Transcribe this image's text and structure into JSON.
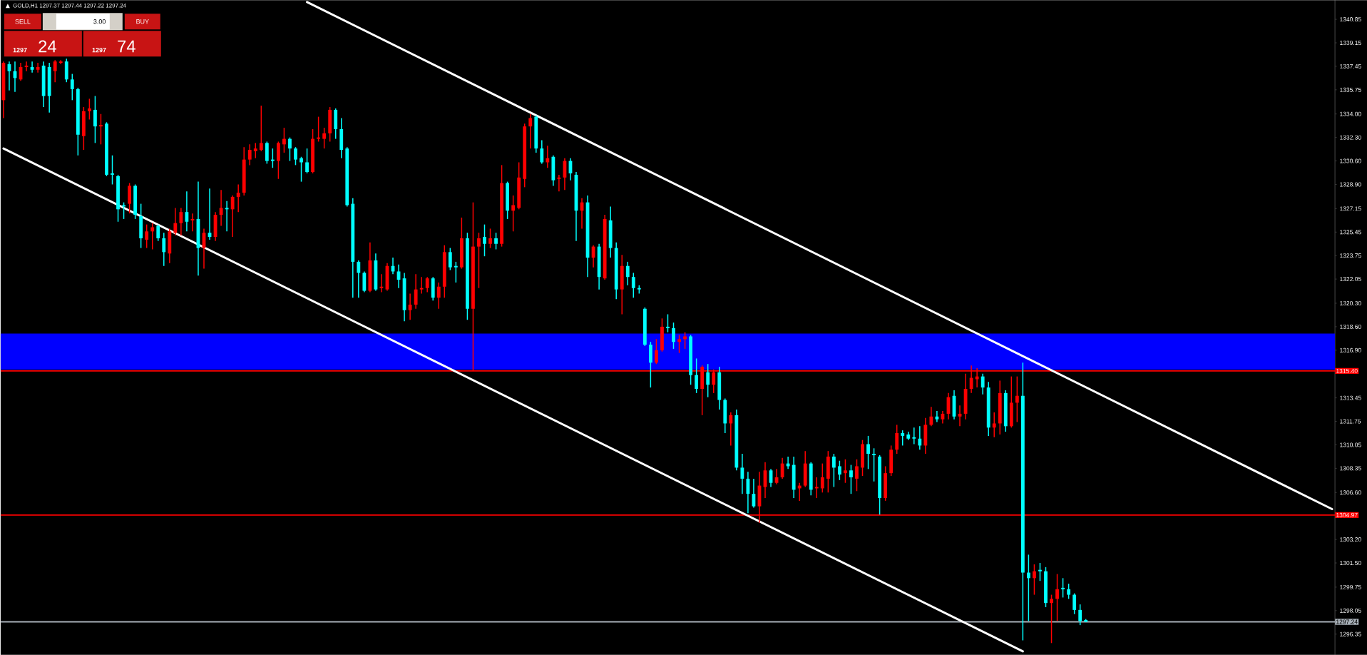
{
  "chart_data": {
    "type": "candlestick",
    "title": "GOLD,H1 1297.37 1297.44 1297.22 1297.24",
    "annotations": [
      "SELL",
      "3.00",
      "BUY",
      "1297",
      "24",
      "1297",
      "74"
    ],
    "categories": [
      null,
      null,
      null,
      null,
      null,
      null,
      null,
      null,
      null,
      null,
      null,
      null,
      null,
      null,
      null,
      null,
      null,
      null,
      null,
      null,
      null,
      null,
      null,
      null,
      null,
      null,
      null,
      null,
      null,
      null,
      null,
      null,
      null,
      null,
      null,
      null,
      null,
      null,
      null,
      null,
      null,
      null,
      null,
      null,
      null,
      null,
      null,
      null,
      null,
      null,
      null,
      null,
      null,
      null,
      null,
      null,
      null,
      null,
      null,
      null,
      null,
      null,
      null,
      null,
      null,
      null,
      null,
      null,
      null,
      null,
      null,
      null,
      null,
      null,
      null,
      null,
      null,
      null,
      null,
      null,
      null,
      null,
      null,
      null,
      null,
      null,
      null,
      null,
      null,
      null,
      null,
      null,
      null,
      null,
      null,
      null,
      null,
      null,
      null,
      null,
      null,
      null,
      null,
      null,
      null,
      null,
      null,
      null,
      null,
      null,
      null,
      null,
      null,
      null,
      null,
      null,
      null,
      null,
      null,
      null,
      null,
      null,
      null,
      null,
      null,
      null,
      null,
      null,
      null,
      null,
      null,
      null,
      null,
      null,
      null,
      null,
      null,
      null,
      null,
      null,
      null,
      null,
      null,
      null,
      null,
      null,
      null,
      null,
      null,
      null,
      null,
      null,
      null,
      null,
      null,
      null,
      null,
      null,
      null,
      null,
      null,
      null,
      null,
      null,
      null,
      null,
      null,
      null,
      null,
      null,
      null,
      null,
      null,
      null,
      null,
      null,
      null,
      null,
      null,
      null,
      null,
      null,
      null,
      null,
      null,
      null,
      null,
      null,
      null,
      null,
      null,
      null,
      null,
      null,
      null,
      null,
      null,
      null,
      null,
      null,
      null,
      null,
      null,
      null,
      null,
      null,
      null,
      null,
      null,
      null,
      null,
      null,
      null,
      null,
      null,
      null,
      null,
      null,
      null,
      null,
      null,
      null,
      null,
      null,
      null,
      null,
      null,
      null,
      null,
      null,
      null,
      null,
      null
    ],
    "ohlc": [
      [
        1335.0,
        1337.8,
        1333.7,
        1337.7
      ],
      [
        1337.6,
        1337.8,
        1335.7,
        1337.1
      ],
      [
        1337.1,
        1337.8,
        1335.6,
        1336.6
      ],
      [
        1336.5,
        1337.7,
        1336.4,
        1337.4
      ],
      [
        1337.4,
        1337.8,
        1337.1,
        1337.5
      ],
      [
        1337.4,
        1337.8,
        1337.0,
        1337.2
      ],
      [
        1337.2,
        1337.7,
        1337.0,
        1337.4
      ],
      [
        1337.5,
        1337.8,
        1334.5,
        1335.3
      ],
      [
        1337.4,
        1337.7,
        1334.1,
        1335.3
      ],
      [
        1337.1,
        1337.9,
        1336.3,
        1337.8
      ],
      [
        1337.7,
        1337.9,
        1337.6,
        1337.8
      ],
      [
        1337.8,
        1338.0,
        1336.3,
        1336.5
      ],
      [
        1336.5,
        1336.9,
        1335.0,
        1335.8
      ],
      [
        1335.8,
        1335.9,
        1331.0,
        1332.5
      ],
      [
        1332.4,
        1334.5,
        1331.4,
        1334.2
      ],
      [
        1334.2,
        1335.1,
        1333.6,
        1334.4
      ],
      [
        1334.3,
        1335.3,
        1331.9,
        1333.1
      ],
      [
        1333.1,
        1334.0,
        1331.8,
        1333.2
      ],
      [
        1333.3,
        1333.4,
        1329.5,
        1329.6
      ],
      [
        1329.7,
        1331.0,
        1328.9,
        1329.6
      ],
      [
        1329.5,
        1329.6,
        1326.2,
        1327.1
      ],
      [
        1327.4,
        1327.6,
        1326.4,
        1327.3
      ],
      [
        1327.5,
        1329.0,
        1326.8,
        1328.8
      ],
      [
        1328.8,
        1328.9,
        1326.4,
        1326.7
      ],
      [
        1326.6,
        1327.5,
        1324.3,
        1325.0
      ],
      [
        1324.9,
        1326.0,
        1324.3,
        1325.5
      ],
      [
        1325.5,
        1326.1,
        1324.2,
        1325.8
      ],
      [
        1325.9,
        1326.0,
        1324.8,
        1325.0
      ],
      [
        1325.0,
        1325.4,
        1323.0,
        1324.0
      ],
      [
        1323.9,
        1325.7,
        1323.2,
        1325.5
      ],
      [
        1325.4,
        1327.2,
        1325.2,
        1326.1
      ],
      [
        1326.1,
        1327.2,
        1325.2,
        1326.9
      ],
      [
        1326.9,
        1328.4,
        1325.5,
        1326.2
      ],
      [
        1326.3,
        1326.8,
        1325.5,
        1326.4
      ],
      [
        1326.4,
        1329.1,
        1322.3,
        1324.3
      ],
      [
        1324.3,
        1325.7,
        1322.8,
        1325.4
      ],
      [
        1325.4,
        1328.6,
        1324.9,
        1325.1
      ],
      [
        1325.1,
        1326.9,
        1324.8,
        1326.7
      ],
      [
        1326.7,
        1328.5,
        1325.9,
        1327.2
      ],
      [
        1327.2,
        1327.7,
        1325.5,
        1327.1
      ],
      [
        1327.1,
        1328.1,
        1325.1,
        1328.0
      ],
      [
        1328.0,
        1328.9,
        1326.9,
        1328.3
      ],
      [
        1328.3,
        1331.6,
        1328.1,
        1330.7
      ],
      [
        1330.7,
        1331.8,
        1330.3,
        1331.4
      ],
      [
        1331.3,
        1331.9,
        1330.8,
        1331.5
      ],
      [
        1331.4,
        1334.6,
        1331.3,
        1331.9
      ],
      [
        1331.9,
        1332.0,
        1330.4,
        1330.6
      ],
      [
        1330.7,
        1331.5,
        1330.1,
        1330.6
      ],
      [
        1330.6,
        1332.0,
        1329.3,
        1331.9
      ],
      [
        1331.8,
        1333.0,
        1331.2,
        1332.2
      ],
      [
        1332.2,
        1332.3,
        1330.6,
        1331.5
      ],
      [
        1331.5,
        1331.6,
        1330.3,
        1330.7
      ],
      [
        1330.8,
        1330.9,
        1329.1,
        1330.5
      ],
      [
        1330.5,
        1331.5,
        1329.7,
        1329.8
      ],
      [
        1329.8,
        1332.9,
        1329.7,
        1332.2
      ],
      [
        1332.2,
        1333.8,
        1332.0,
        1332.3
      ],
      [
        1332.2,
        1333.0,
        1331.5,
        1332.6
      ],
      [
        1332.6,
        1334.5,
        1332.0,
        1334.3
      ],
      [
        1334.3,
        1334.4,
        1332.2,
        1332.9
      ],
      [
        1332.9,
        1333.7,
        1330.8,
        1331.4
      ],
      [
        1331.5,
        1331.6,
        1327.3,
        1327.4
      ],
      [
        1327.5,
        1327.9,
        1320.7,
        1323.3
      ],
      [
        1323.3,
        1323.4,
        1320.7,
        1322.5
      ],
      [
        1322.5,
        1322.6,
        1321.1,
        1321.2
      ],
      [
        1321.2,
        1324.7,
        1321.1,
        1323.4
      ],
      [
        1323.4,
        1323.9,
        1321.2,
        1321.3
      ],
      [
        1321.4,
        1322.4,
        1321.1,
        1321.5
      ],
      [
        1321.3,
        1323.2,
        1321.2,
        1323.0
      ],
      [
        1323.0,
        1323.6,
        1322.4,
        1322.6
      ],
      [
        1322.6,
        1323.1,
        1321.4,
        1322.0
      ],
      [
        1322.1,
        1322.5,
        1319.0,
        1319.8
      ],
      [
        1319.8,
        1321.0,
        1319.1,
        1320.2
      ],
      [
        1320.2,
        1322.4,
        1319.9,
        1321.3
      ],
      [
        1321.3,
        1322.2,
        1321.0,
        1321.4
      ],
      [
        1321.4,
        1322.2,
        1321.1,
        1322.1
      ],
      [
        1322.1,
        1322.2,
        1320.5,
        1320.7
      ],
      [
        1320.7,
        1321.8,
        1319.9,
        1321.5
      ],
      [
        1321.5,
        1324.5,
        1320.7,
        1324.0
      ],
      [
        1324.0,
        1324.3,
        1322.7,
        1322.9
      ],
      [
        1323.0,
        1323.3,
        1321.8,
        1322.9
      ],
      [
        1322.9,
        1326.5,
        1322.8,
        1325.0
      ],
      [
        1325.0,
        1325.4,
        1319.1,
        1319.9
      ],
      [
        1319.9,
        1327.6,
        1315.4,
        1324.4
      ],
      [
        1324.4,
        1325.4,
        1321.4,
        1325.0
      ],
      [
        1325.1,
        1326.0,
        1323.7,
        1324.6
      ],
      [
        1324.6,
        1325.7,
        1324.3,
        1325.0
      ],
      [
        1325.0,
        1325.4,
        1324.2,
        1324.6
      ],
      [
        1324.6,
        1330.3,
        1324.4,
        1329.0
      ],
      [
        1329.0,
        1329.1,
        1326.4,
        1327.0
      ],
      [
        1327.0,
        1328.1,
        1325.5,
        1327.4
      ],
      [
        1327.2,
        1330.5,
        1327.1,
        1329.4
      ],
      [
        1329.3,
        1333.3,
        1328.7,
        1333.1
      ],
      [
        1333.1,
        1334.0,
        1331.5,
        1333.7
      ],
      [
        1333.8,
        1333.9,
        1331.2,
        1331.5
      ],
      [
        1331.5,
        1332.1,
        1330.4,
        1330.5
      ],
      [
        1330.5,
        1331.7,
        1330.1,
        1330.8
      ],
      [
        1330.9,
        1331.0,
        1328.8,
        1329.2
      ],
      [
        1329.3,
        1329.6,
        1328.4,
        1329.4
      ],
      [
        1329.4,
        1330.8,
        1328.5,
        1330.6
      ],
      [
        1330.6,
        1330.8,
        1329.2,
        1329.7
      ],
      [
        1329.6,
        1329.8,
        1324.8,
        1327.0
      ],
      [
        1327.0,
        1327.9,
        1325.7,
        1327.6
      ],
      [
        1327.6,
        1328.1,
        1322.2,
        1323.6
      ],
      [
        1323.6,
        1324.5,
        1322.9,
        1324.4
      ],
      [
        1324.4,
        1324.6,
        1321.3,
        1322.2
      ],
      [
        1322.1,
        1326.7,
        1322.0,
        1326.4
      ],
      [
        1326.3,
        1327.3,
        1323.6,
        1324.3
      ],
      [
        1324.3,
        1324.7,
        1320.6,
        1321.3
      ],
      [
        1321.3,
        1323.8,
        1319.5,
        1323.0
      ],
      [
        1323.0,
        1323.3,
        1321.6,
        1322.2
      ],
      [
        1322.2,
        1322.5,
        1320.7,
        1321.4
      ],
      [
        1321.4,
        1321.6,
        1321.0,
        1321.3
      ],
      [
        1319.9,
        1320.0,
        1317.2,
        1317.3
      ],
      [
        1317.3,
        1317.5,
        1314.2,
        1316.0
      ],
      [
        1316.0,
        1317.7,
        1315.9,
        1316.9
      ],
      [
        1316.9,
        1319.2,
        1316.8,
        1318.6
      ],
      [
        1318.6,
        1319.5,
        1318.2,
        1318.5
      ],
      [
        1318.5,
        1318.9,
        1317.0,
        1317.5
      ],
      [
        1317.5,
        1318.0,
        1316.7,
        1317.7
      ],
      [
        1317.7,
        1318.2,
        1317.0,
        1317.9
      ],
      [
        1317.9,
        1318.0,
        1314.4,
        1315.1
      ],
      [
        1315.1,
        1316.3,
        1313.8,
        1314.1
      ],
      [
        1314.1,
        1315.8,
        1312.2,
        1315.7
      ],
      [
        1315.3,
        1315.9,
        1313.5,
        1314.4
      ],
      [
        1314.4,
        1315.5,
        1313.8,
        1315.3
      ],
      [
        1315.3,
        1315.7,
        1312.6,
        1313.3
      ],
      [
        1313.3,
        1313.4,
        1310.9,
        1311.6
      ],
      [
        1311.6,
        1312.4,
        1310.0,
        1312.2
      ],
      [
        1312.2,
        1312.6,
        1308.2,
        1308.4
      ],
      [
        1308.4,
        1309.4,
        1306.5,
        1307.6
      ],
      [
        1307.6,
        1308.1,
        1305.1,
        1306.5
      ],
      [
        1306.5,
        1307.6,
        1305.5,
        1305.6
      ],
      [
        1305.6,
        1308.1,
        1304.4,
        1307.1
      ],
      [
        1307.0,
        1308.8,
        1306.2,
        1308.2
      ],
      [
        1308.2,
        1308.3,
        1307.0,
        1307.3
      ],
      [
        1307.3,
        1308.3,
        1307.2,
        1307.7
      ],
      [
        1307.7,
        1309.1,
        1307.6,
        1308.7
      ],
      [
        1308.7,
        1309.2,
        1308.3,
        1308.5
      ],
      [
        1308.6,
        1309.2,
        1306.2,
        1306.8
      ],
      [
        1306.9,
        1307.3,
        1306.0,
        1307.1
      ],
      [
        1307.1,
        1309.6,
        1307.0,
        1308.7
      ],
      [
        1308.7,
        1308.8,
        1306.4,
        1306.8
      ],
      [
        1306.9,
        1307.7,
        1306.2,
        1307.0
      ],
      [
        1306.9,
        1308.7,
        1306.6,
        1307.7
      ],
      [
        1307.6,
        1309.6,
        1306.6,
        1309.2
      ],
      [
        1309.2,
        1309.4,
        1307.0,
        1308.4
      ],
      [
        1308.5,
        1308.9,
        1307.5,
        1307.9
      ],
      [
        1308.0,
        1309.0,
        1307.3,
        1308.2
      ],
      [
        1308.2,
        1308.6,
        1306.5,
        1307.7
      ],
      [
        1307.6,
        1309.0,
        1306.7,
        1308.5
      ],
      [
        1308.4,
        1310.4,
        1307.8,
        1310.1
      ],
      [
        1310.1,
        1310.7,
        1308.3,
        1309.4
      ],
      [
        1309.4,
        1309.8,
        1307.4,
        1309.3
      ],
      [
        1309.2,
        1309.3,
        1305.0,
        1306.2
      ],
      [
        1306.2,
        1308.5,
        1306.0,
        1308.0
      ],
      [
        1308.0,
        1310.0,
        1307.8,
        1309.7
      ],
      [
        1309.7,
        1311.5,
        1309.4,
        1310.9
      ],
      [
        1310.9,
        1311.1,
        1310.0,
        1310.7
      ],
      [
        1310.8,
        1311.0,
        1310.4,
        1310.5
      ],
      [
        1310.6,
        1311.3,
        1310.1,
        1310.5
      ],
      [
        1310.5,
        1311.4,
        1309.7,
        1310.0
      ],
      [
        1310.0,
        1312.0,
        1309.4,
        1311.5
      ],
      [
        1311.5,
        1312.8,
        1311.4,
        1312.1
      ],
      [
        1312.1,
        1312.5,
        1311.7,
        1311.9
      ],
      [
        1311.9,
        1312.5,
        1311.6,
        1312.3
      ],
      [
        1312.3,
        1313.8,
        1311.9,
        1313.5
      ],
      [
        1313.6,
        1314.0,
        1311.9,
        1312.1
      ],
      [
        1312.1,
        1312.9,
        1311.4,
        1312.3
      ],
      [
        1312.3,
        1315.2,
        1311.9,
        1314.1
      ],
      [
        1314.1,
        1315.8,
        1313.8,
        1314.9
      ],
      [
        1314.8,
        1315.6,
        1314.2,
        1315.0
      ],
      [
        1315.0,
        1315.2,
        1313.7,
        1314.2
      ],
      [
        1314.2,
        1314.6,
        1310.7,
        1311.3
      ],
      [
        1311.3,
        1312.4,
        1310.6,
        1311.6
      ],
      [
        1311.6,
        1314.7,
        1310.8,
        1313.8
      ],
      [
        1313.8,
        1314.0,
        1311.0,
        1311.4
      ],
      [
        1311.4,
        1315.0,
        1311.3,
        1313.1
      ],
      [
        1313.1,
        1315.0,
        1311.7,
        1313.6
      ],
      [
        1313.6,
        1316.0,
        1295.9,
        1300.8
      ],
      [
        1300.8,
        1302.1,
        1297.3,
        1300.4
      ],
      [
        1300.4,
        1301.4,
        1299.2,
        1300.9
      ],
      [
        1301.0,
        1301.5,
        1300.2,
        1300.9
      ],
      [
        1300.9,
        1301.2,
        1298.3,
        1298.6
      ],
      [
        1298.6,
        1299.2,
        1295.7,
        1298.9
      ],
      [
        1298.9,
        1300.7,
        1297.3,
        1299.6
      ],
      [
        1299.7,
        1300.4,
        1299.0,
        1299.6
      ],
      [
        1299.6,
        1300.0,
        1298.9,
        1299.2
      ],
      [
        1299.2,
        1299.3,
        1297.8,
        1298.1
      ],
      [
        1298.1,
        1298.5,
        1297.0,
        1297.3
      ],
      [
        1297.37,
        1297.44,
        1297.22,
        1297.24
      ],
      null,
      null,
      null,
      null,
      null,
      null,
      null,
      null,
      null,
      null,
      null,
      null,
      null,
      null,
      null,
      null,
      null,
      null,
      null,
      null,
      null,
      null,
      null,
      null,
      null,
      null,
      null,
      null,
      null,
      null,
      null,
      null,
      null,
      null,
      null,
      null,
      null,
      null,
      null,
      null,
      null,
      null,
      null
    ],
    "colors": [
      "#ff0000",
      "#00ffff",
      "#00ffff",
      "#ff0000",
      "#ff0000",
      "#00ffff",
      "#ff0000",
      "#00ffff",
      "#00ffff",
      "#ff0000",
      "#ff0000",
      "#00ffff",
      "#00ffff",
      "#00ffff",
      "#ff0000",
      "#ff0000",
      "#00ffff",
      "#ff0000",
      "#00ffff",
      "#00ffff",
      "#00ffff",
      "#00ffff",
      "#ff0000",
      "#00ffff",
      "#00ffff",
      "#ff0000",
      "#ff0000",
      "#00ffff",
      "#00ffff",
      "#ff0000",
      "#ff0000",
      "#ff0000",
      "#00ffff",
      "#ff0000",
      "#00ffff",
      "#ff0000",
      "#00ffff",
      "#ff0000",
      "#ff0000",
      "#00ffff",
      "#ff0000",
      "#ff0000",
      "#ff0000",
      "#ff0000",
      "#ff0000",
      "#ff0000",
      "#00ffff",
      "#00ffff",
      "#ff0000",
      "#ff0000",
      "#00ffff",
      "#00ffff",
      "#00ffff",
      "#00ffff",
      "#ff0000",
      "#ff0000",
      "#ff0000",
      "#ff0000",
      "#00ffff",
      "#00ffff",
      "#00ffff",
      "#00ffff",
      "#00ffff",
      "#00ffff",
      "#ff0000",
      "#00ffff",
      "#ff0000",
      "#ff0000",
      "#00ffff",
      "#00ffff",
      "#00ffff",
      "#ff0000",
      "#ff0000",
      "#ff0000",
      "#ff0000",
      "#00ffff",
      "#ff0000",
      "#ff0000",
      "#00ffff",
      "#00ffff",
      "#ff0000",
      "#00ffff",
      "#ff0000",
      "#ff0000",
      "#00ffff",
      "#ff0000",
      "#00ffff",
      "#ff0000",
      "#00ffff",
      "#ff0000",
      "#ff0000",
      "#ff0000",
      "#ff0000",
      "#00ffff",
      "#00ffff",
      "#ff0000",
      "#00ffff",
      "#ff0000",
      "#ff0000",
      "#00ffff",
      "#00ffff",
      "#ff0000",
      "#00ffff",
      "#ff0000",
      "#00ffff",
      "#ff0000",
      "#00ffff",
      "#00ffff",
      "#ff0000",
      "#00ffff",
      "#00ffff",
      "#00ffff",
      "#00ffff",
      "#00ffff",
      "#ff0000",
      "#ff0000",
      "#00ffff",
      "#00ffff",
      "#ff0000",
      "#ff0000",
      "#00ffff",
      "#00ffff",
      "#ff0000",
      "#00ffff",
      "#ff0000",
      "#00ffff",
      "#00ffff",
      "#ff0000",
      "#00ffff",
      "#00ffff",
      "#00ffff",
      "#00ffff",
      "#ff0000",
      "#ff0000",
      "#00ffff",
      "#ff0000",
      "#ff0000",
      "#00ffff",
      "#00ffff",
      "#ff0000",
      "#ff0000",
      "#00ffff",
      "#ff0000",
      "#ff0000",
      "#ff0000",
      "#00ffff",
      "#00ffff",
      "#ff0000",
      "#00ffff",
      "#ff0000",
      "#ff0000",
      "#00ffff",
      "#00ffff",
      "#00ffff",
      "#ff0000",
      "#ff0000",
      "#ff0000",
      "#00ffff",
      "#00ffff",
      "#00ffff",
      "#00ffff",
      "#ff0000",
      "#ff0000",
      "#00ffff",
      "#ff0000",
      "#ff0000",
      "#00ffff",
      "#ff0000",
      "#ff0000",
      "#ff0000",
      "#ff0000",
      "#00ffff",
      "#00ffff",
      "#ff0000",
      "#ff0000",
      "#00ffff",
      "#ff0000",
      "#ff0000",
      "#00ffff",
      "#00ffff",
      "#ff0000",
      "#00ffff",
      "#00ffff",
      "#ff0000",
      "#ff0000",
      "#00ffff",
      "#00ffff",
      "#00ffff",
      "#00ffff",
      "#00ffff",
      null,
      null,
      null,
      null,
      null,
      null,
      null,
      null,
      null,
      null,
      null,
      null,
      null,
      null,
      null,
      null,
      null,
      null,
      null,
      null,
      null,
      null,
      null,
      null,
      null,
      null,
      null,
      null,
      null,
      null,
      null,
      null,
      null,
      null,
      null,
      null,
      null,
      null,
      null,
      null,
      null,
      null,
      null
    ],
    "series": [
      {
        "type": "line",
        "color": "#ffffff",
        "values": [
          null,
          null,
          null,
          null,
          null,
          null,
          null,
          null,
          null,
          null,
          null,
          null,
          null,
          null,
          null,
          null,
          null,
          null,
          null,
          null,
          null,
          null,
          null,
          null,
          null,
          null,
          null,
          null,
          null,
          null,
          null,
          null,
          null,
          null,
          null,
          null,
          null,
          null,
          null,
          null,
          null,
          null,
          null,
          null,
          null,
          null,
          null,
          null,
          null,
          null,
          null,
          null,
          null,
          1342.1,
          null,
          null,
          null,
          null,
          null,
          null,
          null,
          null,
          null,
          null,
          null,
          null,
          null,
          null,
          null,
          null,
          null,
          null,
          null,
          null,
          null,
          null,
          null,
          null,
          null,
          null,
          null,
          null,
          null,
          null,
          null,
          null,
          null,
          null,
          null,
          null,
          null,
          null,
          null,
          null,
          null,
          null,
          null,
          null,
          null,
          null,
          null,
          null,
          null,
          null,
          null,
          null,
          null,
          null,
          null,
          null,
          null,
          null,
          null,
          null,
          null,
          null,
          null,
          null,
          null,
          null,
          null,
          null,
          null,
          null,
          null,
          null,
          null,
          null,
          null,
          null,
          null,
          null,
          null,
          null,
          null,
          null,
          null,
          null,
          null,
          null,
          null,
          null,
          null,
          null,
          null,
          null,
          null,
          null,
          null,
          null,
          null,
          null,
          null,
          null,
          null,
          null,
          null,
          null,
          null,
          null,
          null,
          null,
          null,
          null,
          null,
          null,
          null,
          null,
          null,
          null,
          null,
          null,
          null,
          null,
          null,
          null,
          null,
          null,
          null,
          null,
          null,
          null,
          null,
          null,
          null,
          null,
          null,
          null,
          null,
          null,
          null,
          null,
          null,
          null,
          null,
          null,
          null,
          null,
          null,
          null,
          null,
          null,
          null,
          null,
          null,
          null,
          null,
          null,
          null,
          null,
          null,
          null,
          null,
          null,
          null,
          null,
          null,
          null,
          null,
          null,
          null,
          null,
          null,
          null,
          null,
          null,
          null,
          null,
          null,
          null,
          null,
          null,
          1305.4
        ]
      },
      {
        "type": "line",
        "color": "#ffffff",
        "values": [
          1331.5,
          null,
          null,
          null,
          null,
          null,
          null,
          null,
          null,
          null,
          null,
          null,
          null,
          null,
          null,
          null,
          null,
          null,
          null,
          null,
          null,
          null,
          null,
          null,
          null,
          null,
          null,
          null,
          null,
          null,
          null,
          null,
          null,
          null,
          null,
          null,
          null,
          null,
          null,
          null,
          null,
          null,
          null,
          null,
          null,
          null,
          null,
          null,
          null,
          null,
          null,
          null,
          null,
          null,
          null,
          null,
          null,
          null,
          null,
          null,
          null,
          null,
          null,
          null,
          null,
          null,
          null,
          null,
          null,
          null,
          null,
          null,
          null,
          null,
          null,
          null,
          null,
          null,
          null,
          null,
          null,
          null,
          null,
          null,
          null,
          null,
          null,
          null,
          null,
          null,
          null,
          null,
          null,
          null,
          null,
          null,
          null,
          null,
          null,
          null,
          null,
          null,
          null,
          null,
          null,
          null,
          null,
          null,
          null,
          null,
          null,
          null,
          null,
          null,
          null,
          null,
          null,
          null,
          null,
          null,
          null,
          null,
          null,
          null,
          null,
          null,
          null,
          null,
          null,
          null,
          null,
          null,
          null,
          null,
          null,
          null,
          null,
          null,
          null,
          null,
          null,
          null,
          null,
          null,
          null,
          null,
          null,
          null,
          null,
          null,
          null,
          null,
          null,
          null,
          null,
          null,
          null,
          null,
          null,
          null,
          null,
          null,
          null,
          null,
          null,
          null,
          null,
          null,
          null,
          null,
          null,
          null,
          null,
          null,
          null,
          null,
          null,
          null,
          1295.1,
          null,
          null,
          null,
          null,
          null,
          null,
          null,
          null,
          null,
          null,
          null,
          null,
          null,
          null,
          null,
          null,
          null,
          null,
          null,
          null,
          null,
          null,
          null,
          null,
          null,
          null,
          null,
          null,
          null,
          null,
          null,
          null,
          null,
          null,
          null,
          null,
          null,
          null,
          null,
          null,
          null,
          null,
          null,
          null,
          null,
          null,
          null,
          null,
          null,
          null,
          null,
          null,
          null,
          null
        ]
      }
    ],
    "ylim": [
      1294.85,
      1342.24
    ],
    "yticks": [
      {
        "value": 1340.85,
        "label": "1340.85"
      },
      {
        "value": 1339.15,
        "label": "1339.15"
      },
      {
        "value": 1337.45,
        "label": "1337.45"
      },
      {
        "value": 1335.75,
        "label": "1335.75"
      },
      {
        "value": 1334.0,
        "label": "1334.00"
      },
      {
        "value": 1332.3,
        "label": "1332.30"
      },
      {
        "value": 1330.6,
        "label": "1330.60"
      },
      {
        "value": 1328.9,
        "label": "1328.90"
      },
      {
        "value": 1327.15,
        "label": "1327.15"
      },
      {
        "value": 1325.45,
        "label": "1325.45"
      },
      {
        "value": 1323.75,
        "label": "1323.75"
      },
      {
        "value": 1322.05,
        "label": "1322.05"
      },
      {
        "value": 1320.3,
        "label": "1320.30"
      },
      {
        "value": 1318.6,
        "label": "1318.60"
      },
      {
        "value": 1316.9,
        "label": "1316.90"
      },
      {
        "value": 1313.45,
        "label": "1313.45"
      },
      {
        "value": 1311.75,
        "label": "1311.75"
      },
      {
        "value": 1310.05,
        "label": "1310.05"
      },
      {
        "value": 1308.35,
        "label": "1308.35"
      },
      {
        "value": 1306.6,
        "label": "1306.60"
      },
      {
        "value": 1303.2,
        "label": "1303.20"
      },
      {
        "value": 1301.5,
        "label": "1301.50"
      },
      {
        "value": 1299.75,
        "label": "1299.75"
      },
      {
        "value": 1298.05,
        "label": "1298.05"
      },
      {
        "value": 1296.35,
        "label": "1296.35"
      }
    ],
    "tick_labels": "y",
    "bands": [
      {
        "axis": "y",
        "from": 1315.5,
        "to": 1318.1,
        "color": "#0000ff"
      }
    ],
    "ref_lines": [
      {
        "axis": "y",
        "value": 1315.4,
        "label": "1315.40",
        "color": "#ff0000"
      },
      {
        "axis": "y",
        "value": 1304.97,
        "label": "1304.97",
        "color": "#ff0000"
      },
      {
        "axis": "y",
        "value": 1297.24,
        "label": "1297.24",
        "color": "#a8b0b8"
      }
    ]
  }
}
